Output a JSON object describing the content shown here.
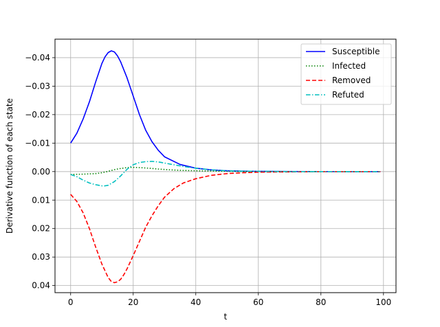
{
  "chart_data": {
    "type": "line",
    "title": "",
    "xlabel": "t",
    "ylabel": "Derivative function of each state",
    "xlim": [
      -5,
      104
    ],
    "ylim": [
      0.0425,
      -0.0465
    ],
    "y_inverted": true,
    "xticks": [
      0,
      20,
      40,
      60,
      80,
      100
    ],
    "yticks": [
      0.04,
      0.03,
      0.02,
      0.01,
      0.0,
      -0.01,
      -0.02,
      -0.03,
      -0.04
    ],
    "xtick_labels": [
      "0",
      "20",
      "40",
      "60",
      "80",
      "100"
    ],
    "ytick_labels": [
      "0.04",
      "0.03",
      "0.02",
      "0.01",
      "0.00",
      "−0.01",
      "−0.02",
      "−0.03",
      "−0.04"
    ],
    "grid": true,
    "legend_position": "top-right",
    "series": [
      {
        "name": "Susceptible",
        "color": "#0000ff",
        "dash": "solid",
        "x": [
          0,
          2,
          4,
          6,
          8,
          10,
          11,
          12,
          13,
          14,
          15,
          16,
          18,
          20,
          22,
          24,
          26,
          28,
          30,
          35,
          40,
          45,
          50,
          55,
          60,
          70,
          80,
          90,
          99
        ],
        "y": [
          -0.01,
          -0.0135,
          -0.0185,
          -0.0245,
          -0.0315,
          -0.038,
          -0.0403,
          -0.0418,
          -0.0424,
          -0.042,
          -0.0406,
          -0.0385,
          -0.033,
          -0.0265,
          -0.02,
          -0.0145,
          -0.0105,
          -0.0075,
          -0.0052,
          -0.0025,
          -0.0012,
          -0.0006,
          -0.0003,
          -0.00015,
          -0.0001,
          -3e-05,
          -1e-05,
          0,
          0
        ]
      },
      {
        "name": "Infected",
        "color": "#008000",
        "dash": "dotted",
        "x": [
          0,
          4,
          8,
          10,
          12,
          14,
          16,
          18,
          20,
          22,
          25,
          28,
          32,
          36,
          40,
          45,
          50,
          60,
          70,
          80,
          90,
          99
        ],
        "y": [
          0.001,
          0.0009,
          0.0007,
          0.0004,
          -0.0001,
          -0.0007,
          -0.0011,
          -0.0014,
          -0.0015,
          -0.0014,
          -0.0012,
          -0.0009,
          -0.0006,
          -0.0004,
          -0.0003,
          -0.0002,
          -0.0001,
          0,
          0,
          0,
          0,
          0
        ]
      },
      {
        "name": "Removed",
        "color": "#ff0000",
        "dash": "dashed",
        "x": [
          0,
          2,
          4,
          6,
          8,
          10,
          12,
          13,
          14,
          15,
          16,
          17,
          18,
          20,
          22,
          24,
          26,
          28,
          30,
          33,
          36,
          40,
          45,
          50,
          55,
          60,
          70,
          80,
          90,
          99
        ],
        "y": [
          0.008,
          0.0105,
          0.0145,
          0.02,
          0.0265,
          0.0325,
          0.0372,
          0.0386,
          0.039,
          0.0387,
          0.0378,
          0.0362,
          0.0342,
          0.0295,
          0.0245,
          0.0195,
          0.0155,
          0.012,
          0.009,
          0.006,
          0.004,
          0.0025,
          0.0013,
          0.0007,
          0.0004,
          0.0002,
          0.0001,
          0,
          0,
          0
        ]
      },
      {
        "name": "Refuted",
        "color": "#00bfbf",
        "dash": "dashdot",
        "x": [
          0,
          2,
          4,
          6,
          8,
          10,
          11,
          12,
          14,
          16,
          18,
          20,
          22,
          24,
          26,
          28,
          30,
          33,
          36,
          40,
          45,
          50,
          55,
          60,
          70,
          80,
          90,
          99
        ],
        "y": [
          0.001,
          0.0018,
          0.003,
          0.004,
          0.0046,
          0.005,
          0.005,
          0.0048,
          0.0035,
          0.0015,
          -0.0008,
          -0.0024,
          -0.0032,
          -0.0035,
          -0.0036,
          -0.0034,
          -0.003,
          -0.0024,
          -0.0018,
          -0.0012,
          -0.0006,
          -0.0003,
          -0.00015,
          -0.0001,
          0,
          0,
          0,
          0
        ]
      }
    ]
  }
}
